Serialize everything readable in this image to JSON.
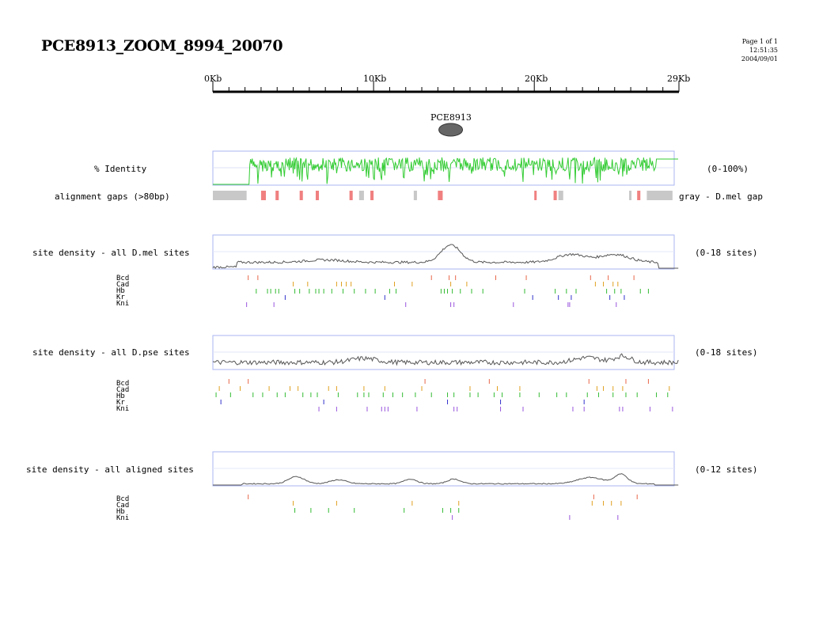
{
  "header": {
    "title": "PCE8913_ZOOM_8994_20070",
    "page": "Page 1 of 1",
    "time": "12:51:35",
    "date": "2004/09/01"
  },
  "scale": {
    "ticks": [
      "0Kb",
      "10Kb",
      "20Kb",
      "29Kb"
    ],
    "max_kb": 29
  },
  "feature": {
    "label": "PCE8913",
    "center_kb": 14.7
  },
  "colors": {
    "identity": "#33cc33",
    "density": "#555555",
    "frame": "#aab4f0",
    "gap_pink": "#f08080",
    "gap_gray": "#c8c8c8",
    "Bcd": "#e8674a",
    "Cad": "#e0a020",
    "Hb": "#33bb33",
    "Kr": "#3333cc",
    "Kni": "#9955dd"
  },
  "tracks": {
    "identity": {
      "label": "% Identity",
      "range": "(0-100%)"
    },
    "gaps": {
      "label": "alignment gaps (>80bp)",
      "legend": "gray - D.mel gap",
      "gray": [
        [
          0,
          2.1
        ],
        [
          9.1,
          9.4
        ],
        [
          12.5,
          12.7
        ],
        [
          21.5,
          21.8
        ],
        [
          25.9,
          26.0
        ],
        [
          27.0,
          28.6
        ]
      ],
      "pink": [
        [
          3.0,
          3.3
        ],
        [
          3.9,
          4.1
        ],
        [
          5.4,
          5.6
        ],
        [
          6.4,
          6.6
        ],
        [
          8.5,
          8.7
        ],
        [
          9.8,
          10.0
        ],
        [
          14.0,
          14.3
        ],
        [
          20.0,
          20.1
        ],
        [
          21.2,
          21.4
        ],
        [
          26.4,
          26.6
        ]
      ]
    },
    "dmel": {
      "label": "site density - all D.mel sites",
      "range": "(0-18 sites)",
      "sites": {
        "Bcd": [
          2.2,
          2.8,
          13.6,
          14.7,
          15.1,
          17.6,
          19.5,
          23.5,
          24.6,
          26.2
        ],
        "Cad": [
          5.0,
          5.9,
          7.7,
          8.0,
          8.3,
          8.6,
          11.3,
          12.4,
          14.8,
          15.8,
          23.8,
          24.3,
          24.9,
          25.2
        ],
        "Hb": [
          2.7,
          3.4,
          3.6,
          3.9,
          4.1,
          5.1,
          5.4,
          6.0,
          6.4,
          6.6,
          6.9,
          7.4,
          8.1,
          8.8,
          9.5,
          10.1,
          11.0,
          11.4,
          14.2,
          14.4,
          14.6,
          14.9,
          15.4,
          16.1,
          16.8,
          19.4,
          21.3,
          22.0,
          22.6,
          24.5,
          25.0,
          25.4,
          26.6,
          27.1
        ],
        "Kr": [
          4.5,
          10.7,
          19.9,
          21.5,
          22.3,
          24.7,
          25.6
        ],
        "Kni": [
          2.1,
          3.8,
          12.0,
          14.8,
          15.0,
          18.7,
          22.1,
          22.2,
          25.1
        ]
      }
    },
    "dpse": {
      "label": "site density - all D.pse sites",
      "range": "(0-18 sites)",
      "sites": {
        "Bcd": [
          1.0,
          2.2,
          13.2,
          17.2,
          23.4,
          25.7,
          27.1
        ],
        "Cad": [
          0.4,
          1.7,
          3.5,
          4.8,
          5.3,
          7.2,
          7.7,
          9.4,
          10.7,
          13.0,
          16.0,
          17.7,
          19.1,
          23.9,
          24.3,
          24.9,
          25.5,
          28.4
        ],
        "Hb": [
          0.2,
          1.1,
          2.5,
          3.1,
          4.0,
          4.5,
          5.6,
          6.1,
          6.5,
          7.8,
          9.0,
          9.4,
          9.7,
          10.6,
          11.2,
          11.8,
          12.6,
          13.6,
          14.6,
          15.0,
          16.0,
          16.5,
          17.5,
          18.0,
          19.1,
          20.3,
          21.4,
          22.0,
          23.3,
          24.0,
          24.9,
          25.7,
          26.4,
          27.6,
          28.3
        ],
        "Kr": [
          0.5,
          6.9,
          14.6,
          17.9,
          23.1
        ],
        "Kni": [
          6.6,
          7.7,
          9.6,
          10.5,
          10.7,
          10.9,
          12.7,
          15.0,
          15.2,
          17.9,
          19.3,
          22.4,
          23.1,
          25.3,
          25.5,
          27.2,
          28.6
        ]
      }
    },
    "aligned": {
      "label": "site density - all aligned sites",
      "range": "(0-12 sites)",
      "sites": {
        "Bcd": [
          2.2,
          23.7,
          26.4
        ],
        "Cad": [
          5.0,
          7.7,
          12.4,
          15.3,
          23.6,
          24.3,
          24.8,
          25.4
        ],
        "Hb": [
          5.1,
          6.1,
          7.2,
          8.8,
          11.9,
          14.3,
          14.8,
          15.3
        ],
        "Kni": [
          14.9,
          22.2,
          25.2
        ]
      }
    }
  },
  "site_labels": {
    "Bcd": "Bcd",
    "Cad": "Cad",
    "Hb": "Hb",
    "Kr": "Kr",
    "Kni": "Kni"
  }
}
